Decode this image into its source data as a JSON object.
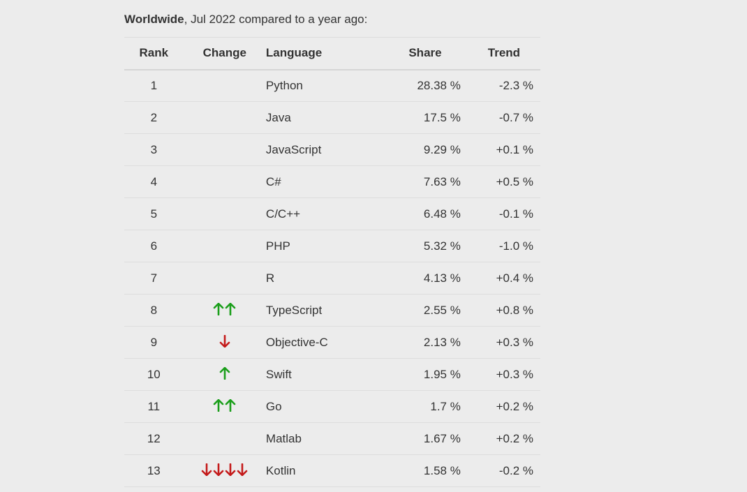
{
  "headline": {
    "bold": "Worldwide",
    "rest": ", Jul 2022 compared to a year ago:"
  },
  "columns": {
    "rank": "Rank",
    "change": "Change",
    "language": "Language",
    "share": "Share",
    "trend": "Trend"
  },
  "colors": {
    "up": "#1a9e1a",
    "down": "#c41a1a"
  },
  "rows": [
    {
      "rank": "1",
      "change": {
        "dir": "",
        "count": 0
      },
      "language": "Python",
      "share": "28.38 %",
      "trend": "-2.3 %"
    },
    {
      "rank": "2",
      "change": {
        "dir": "",
        "count": 0
      },
      "language": "Java",
      "share": "17.5 %",
      "trend": "-0.7 %"
    },
    {
      "rank": "3",
      "change": {
        "dir": "",
        "count": 0
      },
      "language": "JavaScript",
      "share": "9.29 %",
      "trend": "+0.1 %"
    },
    {
      "rank": "4",
      "change": {
        "dir": "",
        "count": 0
      },
      "language": "C#",
      "share": "7.63 %",
      "trend": "+0.5 %"
    },
    {
      "rank": "5",
      "change": {
        "dir": "",
        "count": 0
      },
      "language": "C/C++",
      "share": "6.48 %",
      "trend": "-0.1 %"
    },
    {
      "rank": "6",
      "change": {
        "dir": "",
        "count": 0
      },
      "language": "PHP",
      "share": "5.32 %",
      "trend": "-1.0 %"
    },
    {
      "rank": "7",
      "change": {
        "dir": "",
        "count": 0
      },
      "language": "R",
      "share": "4.13 %",
      "trend": "+0.4 %"
    },
    {
      "rank": "8",
      "change": {
        "dir": "up",
        "count": 2
      },
      "language": "TypeScript",
      "share": "2.55 %",
      "trend": "+0.8 %"
    },
    {
      "rank": "9",
      "change": {
        "dir": "down",
        "count": 1
      },
      "language": "Objective-C",
      "share": "2.13 %",
      "trend": "+0.3 %"
    },
    {
      "rank": "10",
      "change": {
        "dir": "up",
        "count": 1
      },
      "language": "Swift",
      "share": "1.95 %",
      "trend": "+0.3 %"
    },
    {
      "rank": "11",
      "change": {
        "dir": "up",
        "count": 2
      },
      "language": "Go",
      "share": "1.7 %",
      "trend": "+0.2 %"
    },
    {
      "rank": "12",
      "change": {
        "dir": "",
        "count": 0
      },
      "language": "Matlab",
      "share": "1.67 %",
      "trend": "+0.2 %"
    },
    {
      "rank": "13",
      "change": {
        "dir": "down",
        "count": 4
      },
      "language": "Kotlin",
      "share": "1.58 %",
      "trend": "-0.2 %"
    }
  ]
}
